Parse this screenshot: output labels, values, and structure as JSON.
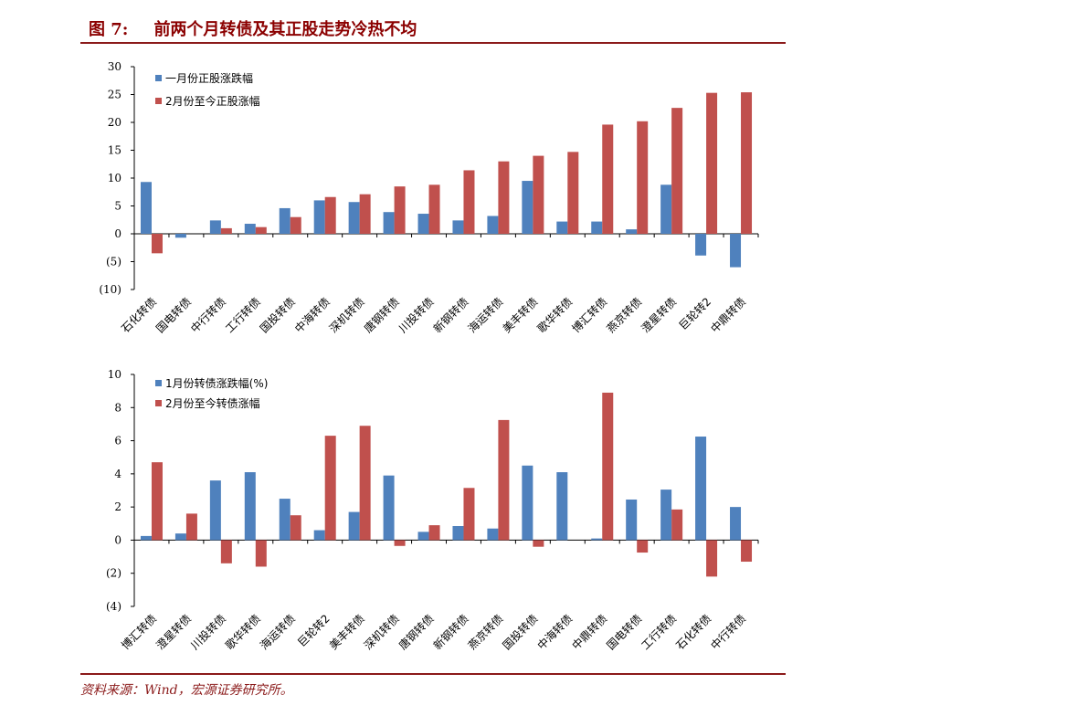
{
  "figure": {
    "number_label": "图 7:",
    "title": "前两个月转债及其正股走势冷热不均"
  },
  "source_note": "资料来源：Wind，宏源证券研究所。",
  "colors": {
    "blue": "#4f81bd",
    "red": "#c0504d",
    "rule": "#8b1a1a",
    "title": "#8b0000"
  },
  "chart_data": [
    {
      "type": "bar",
      "categories": [
        "石化转债",
        "国电转债",
        "中行转债",
        "工行转债",
        "国投转债",
        "中海转债",
        "深机转债",
        "唐钢转债",
        "川投转债",
        "新钢转债",
        "海运转债",
        "美丰转债",
        "歌华转债",
        "博汇转债",
        "燕京转债",
        "澄星转债",
        "巨轮转2",
        "中鼎转债"
      ],
      "series": [
        {
          "name": "一月份正股涨跌幅",
          "color": "#4f81bd",
          "values": [
            9.3,
            -0.7,
            2.4,
            1.8,
            4.6,
            6.0,
            5.7,
            3.9,
            3.6,
            2.4,
            3.2,
            9.5,
            2.2,
            2.2,
            0.8,
            8.8,
            -3.9,
            -6.0
          ]
        },
        {
          "name": "2月份至今正股涨幅",
          "color": "#c0504d",
          "values": [
            -3.5,
            0,
            1.0,
            1.2,
            3.0,
            6.6,
            7.1,
            8.5,
            8.8,
            11.4,
            13.0,
            14.0,
            14.7,
            19.6,
            20.2,
            22.6,
            25.3,
            25.4
          ]
        }
      ],
      "ylim": [
        -10,
        30
      ],
      "yticks": [
        -10,
        -5,
        0,
        5,
        10,
        15,
        20,
        25,
        30
      ],
      "ytick_labels": [
        "(10)",
        "(5)",
        "0",
        "5",
        "10",
        "15",
        "20",
        "25",
        "30"
      ],
      "legend_position": "top-left"
    },
    {
      "type": "bar",
      "categories": [
        "博汇转债",
        "澄星转债",
        "川投转债",
        "歌华转债",
        "海运转债",
        "巨轮转2",
        "美丰转债",
        "深机转债",
        "唐钢转债",
        "新钢转债",
        "燕京转债",
        "国投转债",
        "中海转债",
        "中鼎转债",
        "国电转债",
        "工行转债",
        "石化转债",
        "中行转债"
      ],
      "series": [
        {
          "name": "1月份转债涨跌幅(%)",
          "color": "#4f81bd",
          "values": [
            0.25,
            0.4,
            3.6,
            4.1,
            2.5,
            0.6,
            1.7,
            3.9,
            0.5,
            0.85,
            0.7,
            4.5,
            4.1,
            0.1,
            2.45,
            3.05,
            6.25,
            2.0
          ]
        },
        {
          "name": "2月份至今转债涨幅",
          "color": "#c0504d",
          "values": [
            4.7,
            1.6,
            -1.4,
            -1.6,
            1.5,
            6.3,
            6.9,
            -0.35,
            0.9,
            3.15,
            7.25,
            -0.4,
            0,
            8.9,
            -0.75,
            1.85,
            -2.2,
            -1.3
          ]
        }
      ],
      "ylim": [
        -4,
        10
      ],
      "yticks": [
        -4,
        -2,
        0,
        2,
        4,
        6,
        8,
        10
      ],
      "ytick_labels": [
        "(4)",
        "(2)",
        "0",
        "2",
        "4",
        "6",
        "8",
        "10"
      ],
      "legend_position": "top-left"
    }
  ]
}
